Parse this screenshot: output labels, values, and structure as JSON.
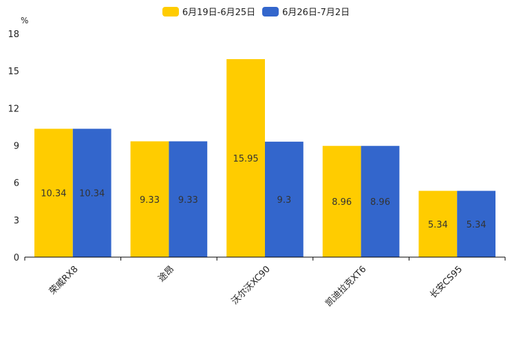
{
  "chart_data": {
    "type": "bar",
    "title": "",
    "ylabel": "%",
    "xlabel": "",
    "ylim": [
      0,
      18
    ],
    "yticks": [
      0,
      3,
      6,
      9,
      12,
      15,
      18
    ],
    "categories": [
      "荣威RX8",
      "途昂",
      "沃尔沃XC90",
      "凯迪拉克XT6",
      "长安CS95"
    ],
    "series": [
      {
        "name": "6月19日-6月25日",
        "color": "#FFCC00",
        "values": [
          10.34,
          9.33,
          15.95,
          8.96,
          5.34
        ]
      },
      {
        "name": "6月26日-7月2日",
        "color": "#3366CC",
        "values": [
          10.34,
          9.33,
          9.3,
          8.96,
          5.34
        ]
      }
    ],
    "legend": "top-center",
    "grid": false
  }
}
